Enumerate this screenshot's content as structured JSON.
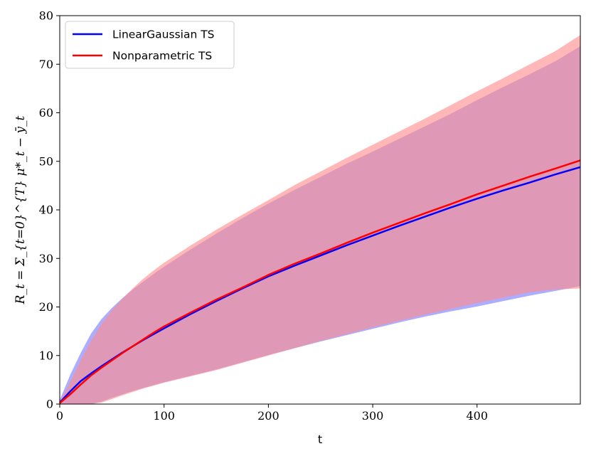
{
  "chart_data": {
    "type": "line",
    "xlabel": "t",
    "ylabel": "R_t = Σ_{t=0}^{T} μ*_t − ȳ_t",
    "xlim": [
      0,
      499
    ],
    "ylim": [
      0,
      80
    ],
    "xticks": [
      0,
      100,
      200,
      300,
      400
    ],
    "yticks": [
      0,
      10,
      20,
      30,
      40,
      50,
      60,
      70,
      80
    ],
    "grid": false,
    "legend_position": "top-left",
    "x": [
      0,
      10,
      20,
      30,
      40,
      50,
      60,
      70,
      80,
      90,
      100,
      125,
      150,
      175,
      200,
      225,
      250,
      275,
      300,
      325,
      350,
      375,
      400,
      425,
      450,
      475,
      499
    ],
    "series": [
      {
        "name": "LinearGaussian TS",
        "color": "#0000ff",
        "band_color": "#7b7bff",
        "values": [
          0.3,
          2.6,
          4.7,
          6.3,
          7.8,
          9.2,
          10.6,
          11.9,
          13.2,
          14.4,
          15.6,
          18.5,
          21.2,
          23.8,
          26.3,
          28.5,
          30.6,
          32.7,
          34.7,
          36.7,
          38.6,
          40.5,
          42.3,
          44.0,
          45.6,
          47.3,
          48.8
        ],
        "upper": [
          0.8,
          6.0,
          10.5,
          14.5,
          17.5,
          19.8,
          21.8,
          23.6,
          25.2,
          26.8,
          28.3,
          31.8,
          35.1,
          38.3,
          41.3,
          44.1,
          46.8,
          49.5,
          52.0,
          54.6,
          57.2,
          59.8,
          62.6,
          65.3,
          67.9,
          70.6,
          73.7
        ],
        "lower": [
          0,
          0,
          0,
          0,
          0.5,
          1.3,
          2.0,
          2.7,
          3.3,
          3.9,
          4.5,
          5.8,
          7.1,
          8.6,
          10.1,
          11.5,
          12.9,
          14.2,
          15.5,
          16.8,
          18.0,
          19.1,
          20.1,
          21.2,
          22.3,
          23.3,
          24.3
        ]
      },
      {
        "name": "Nonparametric TS",
        "color": "#ff0000",
        "band_color": "#ff8a8a",
        "values": [
          0.2,
          2.0,
          4.0,
          5.9,
          7.5,
          9.0,
          10.5,
          11.9,
          13.3,
          14.7,
          16.0,
          18.8,
          21.5,
          24.0,
          26.6,
          28.9,
          31.0,
          33.2,
          35.3,
          37.3,
          39.3,
          41.2,
          43.2,
          45.0,
          46.8,
          48.5,
          50.2
        ],
        "upper": [
          0.4,
          4.5,
          9.0,
          13.0,
          16.5,
          19.3,
          21.7,
          23.8,
          25.8,
          27.5,
          29.1,
          32.6,
          35.9,
          39.0,
          42.0,
          45.1,
          47.9,
          50.7,
          53.4,
          56.1,
          58.8,
          61.6,
          64.4,
          67.1,
          69.9,
          72.7,
          76.0
        ],
        "lower": [
          0,
          0,
          0,
          0,
          0.3,
          1.0,
          1.8,
          2.5,
          3.2,
          3.8,
          4.4,
          5.7,
          7.0,
          8.5,
          10.0,
          11.5,
          13.0,
          14.4,
          15.8,
          17.1,
          18.4,
          19.6,
          20.8,
          21.9,
          23.0,
          23.6,
          23.8
        ]
      }
    ]
  }
}
